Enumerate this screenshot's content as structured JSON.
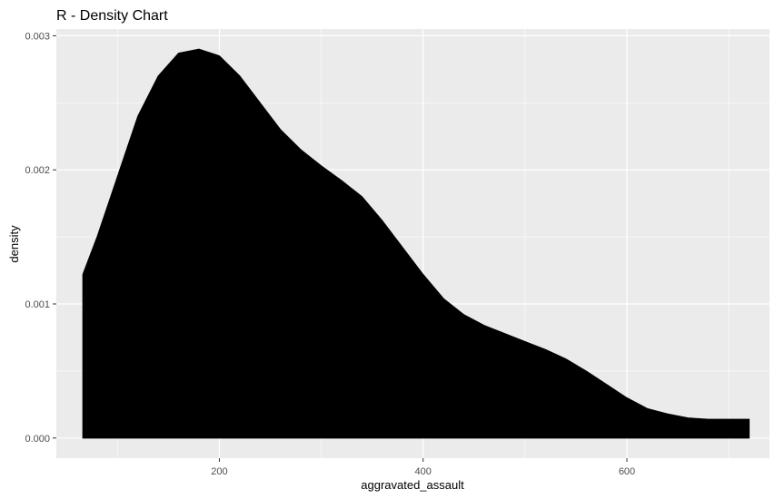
{
  "chart_data": {
    "type": "area",
    "title": "R - Density Chart",
    "xlabel": "aggravated_assault",
    "ylabel": "density",
    "xlim": [
      40,
      740
    ],
    "ylim": [
      -0.00015,
      0.00305
    ],
    "x_ticks": [
      200,
      400,
      600
    ],
    "x_tick_labels": [
      "200",
      "400",
      "600"
    ],
    "x_minor_ticks": [
      100,
      300,
      500,
      700
    ],
    "y_ticks": [
      0.0,
      0.001,
      0.002,
      0.003
    ],
    "y_tick_labels": [
      "0.000",
      "0.001",
      "0.002",
      "0.003"
    ],
    "y_minor_ticks": [
      0.0005,
      0.0015,
      0.0025
    ],
    "grid": true,
    "fill_color": "#000000",
    "panel_color": "#ebebeb",
    "grid_color": "#ffffff",
    "series": [
      {
        "x": [
          66,
          80,
          100,
          120,
          140,
          160,
          180,
          200,
          220,
          240,
          260,
          280,
          300,
          320,
          340,
          360,
          380,
          400,
          420,
          440,
          460,
          480,
          500,
          520,
          540,
          560,
          580,
          600,
          620,
          640,
          660,
          680,
          700,
          720
        ],
        "y": [
          0.00122,
          0.0015,
          0.00195,
          0.0024,
          0.0027,
          0.00287,
          0.0029,
          0.00285,
          0.0027,
          0.0025,
          0.0023,
          0.00215,
          0.00203,
          0.00192,
          0.0018,
          0.00162,
          0.00142,
          0.00122,
          0.00104,
          0.00092,
          0.00084,
          0.00078,
          0.00072,
          0.00066,
          0.00059,
          0.0005,
          0.0004,
          0.0003,
          0.00022,
          0.00018,
          0.00015,
          0.00014,
          0.00014,
          0.00014
        ]
      }
    ]
  }
}
